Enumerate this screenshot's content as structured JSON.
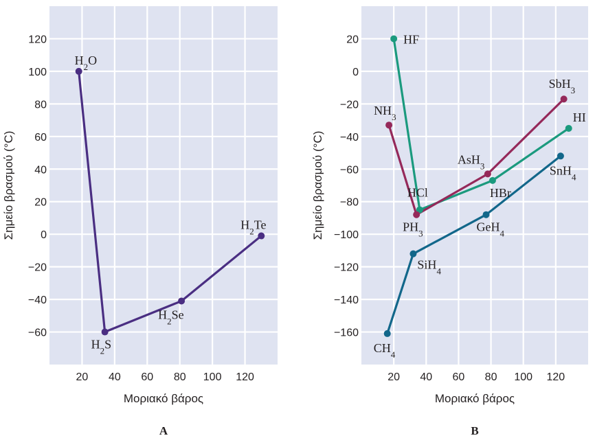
{
  "chart_data": [
    {
      "panel": "A",
      "type": "line",
      "xlabel": "Μοριακό βάρος",
      "ylabel": "Σημείο βρασμού (°C)",
      "xlim": [
        0,
        140
      ],
      "ylim": [
        -80,
        140
      ],
      "xticks": [
        20,
        40,
        60,
        80,
        100,
        120
      ],
      "yticks": [
        -60,
        -40,
        -20,
        0,
        20,
        40,
        60,
        80,
        100,
        120
      ],
      "series": [
        {
          "color": "#4a2e82",
          "points": [
            {
              "x": 18,
              "y": 100,
              "label": "H",
              "sub": "2",
              "tail": "O"
            },
            {
              "x": 34,
              "y": -60,
              "label": "H",
              "sub": "2",
              "tail": "S"
            },
            {
              "x": 81,
              "y": -41,
              "label": "H",
              "sub": "2",
              "tail": "Se"
            },
            {
              "x": 130,
              "y": -1,
              "label": "H",
              "sub": "2",
              "tail": "Te"
            }
          ]
        }
      ]
    },
    {
      "panel": "B",
      "type": "line",
      "xlabel": "Μοριακό βάρος",
      "ylabel": "Σημείο βρασμού (°C)",
      "xlim": [
        0,
        140
      ],
      "ylim": [
        -180,
        40
      ],
      "xticks": [
        20,
        40,
        60,
        80,
        100,
        120
      ],
      "yticks": [
        -160,
        -140,
        -120,
        -100,
        -80,
        -60,
        -40,
        -20,
        0,
        20
      ],
      "series": [
        {
          "color": "#1b9a7e",
          "points": [
            {
              "x": 20,
              "y": 20,
              "label": "HF",
              "sub": "",
              "tail": ""
            },
            {
              "x": 36,
              "y": -85,
              "label": "HCl",
              "sub": "",
              "tail": ""
            },
            {
              "x": 81,
              "y": -67,
              "label": "HBr",
              "sub": "",
              "tail": ""
            },
            {
              "x": 128,
              "y": -35,
              "label": "HI",
              "sub": "",
              "tail": ""
            }
          ]
        },
        {
          "color": "#95295a",
          "points": [
            {
              "x": 17,
              "y": -33,
              "label": "NH",
              "sub": "3",
              "tail": ""
            },
            {
              "x": 34,
              "y": -88,
              "label": "PH",
              "sub": "3",
              "tail": ""
            },
            {
              "x": 78,
              "y": -63,
              "label": "AsH",
              "sub": "3",
              "tail": ""
            },
            {
              "x": 125,
              "y": -17,
              "label": "SbH",
              "sub": "3",
              "tail": ""
            }
          ]
        },
        {
          "color": "#12678a",
          "points": [
            {
              "x": 16,
              "y": -161,
              "label": "CH",
              "sub": "4",
              "tail": ""
            },
            {
              "x": 32,
              "y": -112,
              "label": "SiH",
              "sub": "4",
              "tail": ""
            },
            {
              "x": 77,
              "y": -88,
              "label": "GeH",
              "sub": "4",
              "tail": ""
            },
            {
              "x": 123,
              "y": -52,
              "label": "SnH",
              "sub": "4",
              "tail": ""
            }
          ]
        }
      ]
    }
  ]
}
